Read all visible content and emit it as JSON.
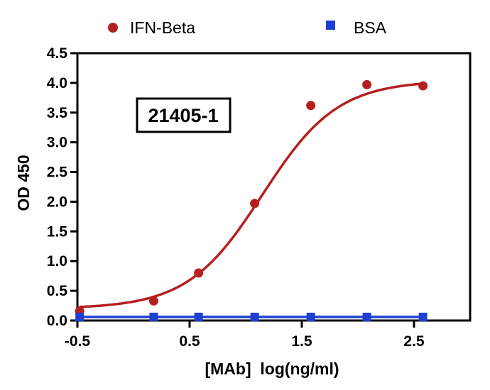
{
  "chart_data": {
    "type": "scatter",
    "title": "",
    "xlabel": "[MAb]  log(ng/ml)",
    "ylabel": "OD 450",
    "xlim": [
      -0.5,
      3.0
    ],
    "ylim": [
      0.0,
      4.5
    ],
    "x_ticks": [
      -0.5,
      0.5,
      1.5,
      2.5
    ],
    "x_tick_labels": [
      "-0.5",
      "0.5",
      "1.5",
      "2.5"
    ],
    "y_ticks": [
      0.0,
      0.5,
      1.0,
      1.5,
      2.0,
      2.5,
      3.0,
      3.5,
      4.0,
      4.5
    ],
    "y_tick_labels": [
      "0.0",
      "0.5",
      "1.0",
      "1.5",
      "2.0",
      "2.5",
      "3.0",
      "3.5",
      "4.0",
      "4.5"
    ],
    "grid": false,
    "legend_position": "top",
    "annotation": "21405-1",
    "series": [
      {
        "name": "IFN-Beta",
        "color": "#b5201f",
        "marker": "circle",
        "x": [
          -0.48,
          0.18,
          0.58,
          1.08,
          1.58,
          2.08,
          2.58
        ],
        "y": [
          0.16,
          0.33,
          0.8,
          1.97,
          3.62,
          3.97,
          3.95
        ],
        "fit_curve": {
          "bottom": 0.2,
          "top": 4.04,
          "ec50_log": 1.15,
          "hill_slope": 1.3
        }
      },
      {
        "name": "BSA",
        "color": "#1f3fd0",
        "marker": "square",
        "x": [
          -0.48,
          0.18,
          0.58,
          1.08,
          1.58,
          2.08,
          2.58
        ],
        "y": [
          0.06,
          0.06,
          0.06,
          0.06,
          0.06,
          0.06,
          0.06
        ]
      }
    ]
  }
}
